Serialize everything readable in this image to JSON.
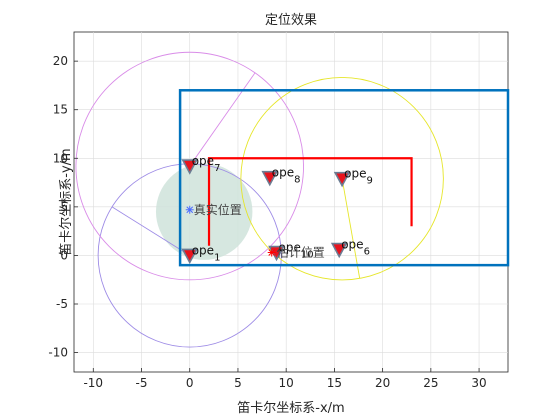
{
  "chart_data": {
    "type": "scatter",
    "title": "定位效果",
    "xlabel": "笛卡尔坐标系-x/m",
    "ylabel": "笛卡尔坐标系-y/m",
    "xlim": [
      -12,
      33
    ],
    "ylim": [
      -12,
      23
    ],
    "xticks": [
      -10,
      -5,
      0,
      5,
      10,
      15,
      20,
      25,
      30
    ],
    "yticks": [
      -10,
      -5,
      0,
      5,
      10,
      15,
      20
    ],
    "grid": true,
    "room": {
      "x": [
        -1,
        33
      ],
      "y": [
        -1,
        17
      ],
      "color": "#0072BD"
    },
    "path": {
      "points": [
        [
          2,
          1
        ],
        [
          2,
          10
        ],
        [
          23,
          10
        ],
        [
          23,
          3
        ]
      ],
      "color": "#FF0000"
    },
    "true_region": {
      "center": [
        1.5,
        4.5
      ],
      "radius": 5,
      "color": "#CFE3DA"
    },
    "anchors": [
      {
        "name": "ope",
        "sub": "1",
        "x": 0,
        "y": 0
      },
      {
        "name": "ope",
        "sub": "6",
        "x": 15.5,
        "y": 0.6
      },
      {
        "name": "ope",
        "sub": "7",
        "x": 0,
        "y": 9.2
      },
      {
        "name": "ope",
        "sub": "8",
        "x": 8.3,
        "y": 8.0
      },
      {
        "name": "ope",
        "sub": "9",
        "x": 15.8,
        "y": 7.9
      },
      {
        "name": "ope",
        "sub": "10",
        "x": 9.0,
        "y": 0.3
      }
    ],
    "circles": [
      {
        "center": [
          0,
          0
        ],
        "radius": 9.5,
        "color": "#9E8CE6",
        "line_angle_deg": 148
      },
      {
        "center": [
          0,
          9.2
        ],
        "radius": 11.8,
        "color": "#D98CE8",
        "line_angle_deg": 55
      },
      {
        "center": [
          15.8,
          7.9
        ],
        "radius": 10.5,
        "color": "#E6E62A",
        "line_angle_deg": -80
      }
    ],
    "true_position": {
      "label": "真实位置",
      "x": 0,
      "y": 4.7,
      "color": "#4D6BFF"
    },
    "estimated_position": {
      "label": "估计位置",
      "x": 8.5,
      "y": 0.3,
      "color": "#FF0000"
    }
  }
}
